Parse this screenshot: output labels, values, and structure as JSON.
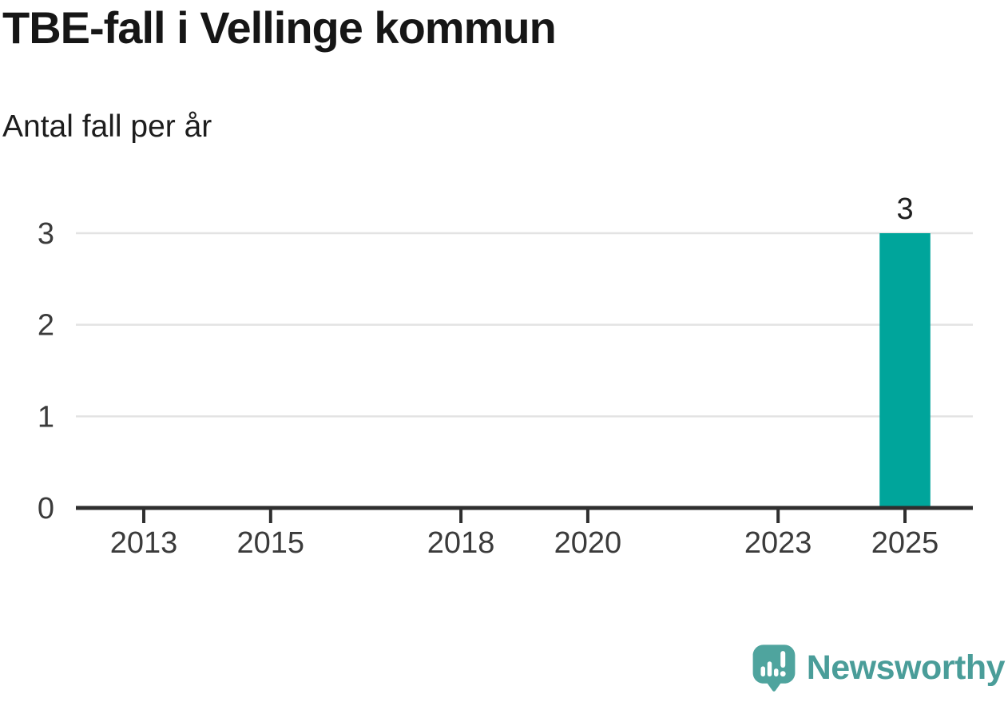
{
  "chart_data": {
    "type": "bar",
    "title": "TBE-fall i Vellinge kommun",
    "subtitle": "Antal fall per år",
    "categories": [
      2025
    ],
    "values": [
      3
    ],
    "bar_value_labels": [
      "3"
    ],
    "x_tick_years": [
      2013,
      2015,
      2018,
      2020,
      2023,
      2025
    ],
    "x_tick_labels": [
      "2013",
      "2015",
      "2018",
      "2020",
      "2023",
      "2025"
    ],
    "y_ticks": [
      0,
      1,
      2,
      3
    ],
    "y_tick_labels": [
      "0",
      "1",
      "2",
      "3"
    ],
    "xlim": [
      2011.93,
      2026.07
    ],
    "ylim": [
      0,
      3
    ],
    "bar_width_years": 0.8,
    "grid": "horizontal-only",
    "legend": "none",
    "colors": {
      "bar": "#00A59B",
      "axis": "#2F2F2F",
      "grid": "#E3E3E3",
      "tick_label": "#3B3B3B",
      "value_label": "#1F1F1F"
    }
  },
  "footer": {
    "brand": "Newsworthy",
    "brand_color": "#4A9D99",
    "logo_icon": "newsworthy-speech-bubble-chart-icon",
    "logo_bubble_color": "#4FA49E"
  }
}
